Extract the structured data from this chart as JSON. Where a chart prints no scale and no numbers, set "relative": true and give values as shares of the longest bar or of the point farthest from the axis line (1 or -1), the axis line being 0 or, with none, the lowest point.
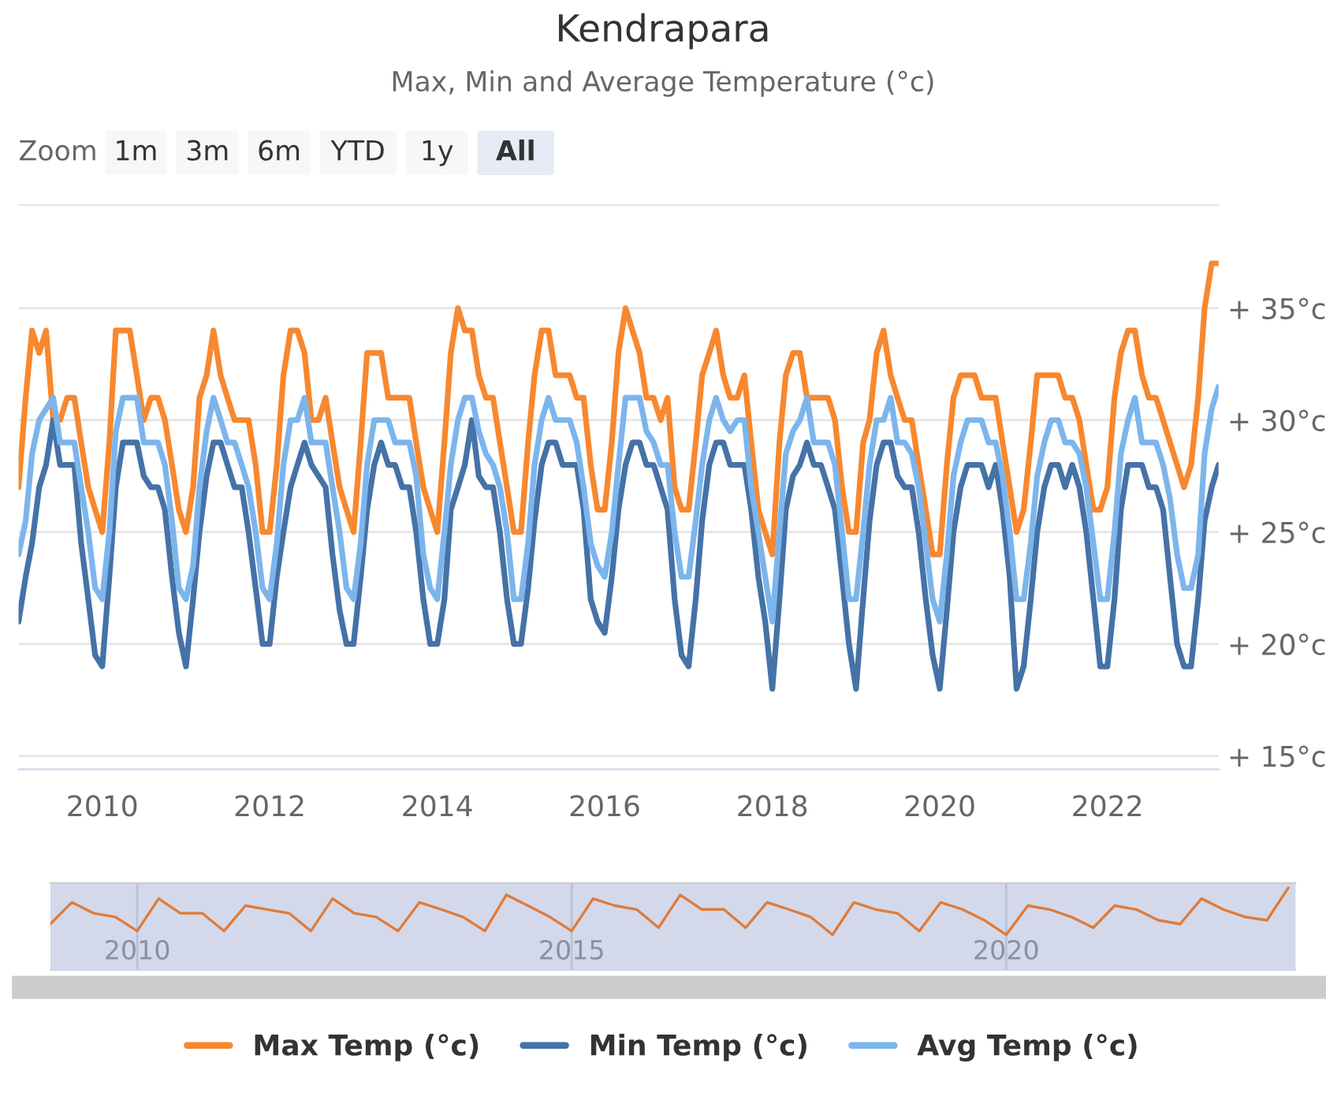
{
  "chart_data": [
    {
      "type": "line",
      "title": "Kendrapara",
      "subtitle": "Max, Min and Average Temperature (°c)",
      "annotations": [
        "Zoom",
        "1m",
        "3m",
        "6m",
        "YTD",
        "1y",
        "All"
      ],
      "x": [
        "2009-01",
        "2009-02",
        "2009-03",
        "2009-04",
        "2009-05",
        "2009-06",
        "2009-07",
        "2009-08",
        "2009-09",
        "2009-10",
        "2009-11",
        "2009-12",
        "2010-01",
        "2010-02",
        "2010-03",
        "2010-04",
        "2010-05",
        "2010-06",
        "2010-07",
        "2010-08",
        "2010-09",
        "2010-10",
        "2010-11",
        "2010-12",
        "2011-01",
        "2011-02",
        "2011-03",
        "2011-04",
        "2011-05",
        "2011-06",
        "2011-07",
        "2011-08",
        "2011-09",
        "2011-10",
        "2011-11",
        "2011-12",
        "2012-01",
        "2012-02",
        "2012-03",
        "2012-04",
        "2012-05",
        "2012-06",
        "2012-07",
        "2012-08",
        "2012-09",
        "2012-10",
        "2012-11",
        "2012-12",
        "2013-01",
        "2013-02",
        "2013-03",
        "2013-04",
        "2013-05",
        "2013-06",
        "2013-07",
        "2013-08",
        "2013-09",
        "2013-10",
        "2013-11",
        "2013-12",
        "2014-01",
        "2014-02",
        "2014-03",
        "2014-04",
        "2014-05",
        "2014-06",
        "2014-07",
        "2014-08",
        "2014-09",
        "2014-10",
        "2014-11",
        "2014-12",
        "2015-01",
        "2015-02",
        "2015-03",
        "2015-04",
        "2015-05",
        "2015-06",
        "2015-07",
        "2015-08",
        "2015-09",
        "2015-10",
        "2015-11",
        "2015-12",
        "2016-01",
        "2016-02",
        "2016-03",
        "2016-04",
        "2016-05",
        "2016-06",
        "2016-07",
        "2016-08",
        "2016-09",
        "2016-10",
        "2016-11",
        "2016-12",
        "2017-01",
        "2017-02",
        "2017-03",
        "2017-04",
        "2017-05",
        "2017-06",
        "2017-07",
        "2017-08",
        "2017-09",
        "2017-10",
        "2017-11",
        "2017-12",
        "2018-01",
        "2018-02",
        "2018-03",
        "2018-04",
        "2018-05",
        "2018-06",
        "2018-07",
        "2018-08",
        "2018-09",
        "2018-10",
        "2018-11",
        "2018-12",
        "2019-01",
        "2019-02",
        "2019-03",
        "2019-04",
        "2019-05",
        "2019-06",
        "2019-07",
        "2019-08",
        "2019-09",
        "2019-10",
        "2019-11",
        "2019-12",
        "2020-01",
        "2020-02",
        "2020-03",
        "2020-04",
        "2020-05",
        "2020-06",
        "2020-07",
        "2020-08",
        "2020-09",
        "2020-10",
        "2020-11",
        "2020-12",
        "2021-01",
        "2021-02",
        "2021-03",
        "2021-04",
        "2021-05",
        "2021-06",
        "2021-07",
        "2021-08",
        "2021-09",
        "2021-10",
        "2021-11",
        "2021-12",
        "2022-01",
        "2022-02",
        "2022-03",
        "2022-04",
        "2022-05",
        "2022-06",
        "2022-07",
        "2022-08",
        "2022-09",
        "2022-10",
        "2022-11",
        "2022-12",
        "2023-01",
        "2023-02",
        "2023-03",
        "2023-04",
        "2023-05"
      ],
      "series": [
        {
          "name": "Max Temp (°c)",
          "color": "#f7882f",
          "values": [
            27,
            31,
            34,
            33,
            34,
            30,
            30,
            31,
            31,
            29,
            27,
            26,
            25,
            29,
            34,
            34,
            34,
            32,
            30,
            31,
            31,
            30,
            28,
            26,
            25,
            27,
            31,
            32,
            34,
            32,
            31,
            30,
            30,
            30,
            28,
            25,
            25,
            28,
            32,
            34,
            34,
            33,
            30,
            30,
            31,
            29,
            27,
            26,
            25,
            29,
            33,
            33,
            33,
            31,
            31,
            31,
            31,
            29,
            27,
            26,
            25,
            29,
            33,
            35,
            34,
            34,
            32,
            31,
            31,
            29,
            27,
            25,
            25,
            29,
            32,
            34,
            34,
            32,
            32,
            32,
            31,
            31,
            28,
            26,
            26,
            29,
            33,
            35,
            34,
            33,
            31,
            31,
            30,
            31,
            27,
            26,
            26,
            29,
            32,
            33,
            34,
            32,
            31,
            31,
            32,
            29,
            26,
            25,
            24,
            29,
            32,
            33,
            33,
            31,
            31,
            31,
            31,
            30,
            27,
            25,
            25,
            29,
            30,
            33,
            34,
            32,
            31,
            30,
            30,
            28,
            26,
            24,
            24,
            28,
            31,
            32,
            32,
            32,
            31,
            31,
            31,
            29,
            27,
            25,
            26,
            29,
            32,
            32,
            32,
            32,
            31,
            31,
            30,
            28,
            26,
            26,
            27,
            31,
            33,
            34,
            34,
            32,
            31,
            31,
            30,
            29,
            28,
            27,
            28,
            31,
            35,
            37,
            37
          ]
        },
        {
          "name": "Min Temp (°c)",
          "color": "#4572a7",
          "values": [
            21,
            23,
            24.5,
            27,
            28,
            30,
            28,
            28,
            28,
            24.5,
            22,
            19.5,
            19,
            23,
            27,
            29,
            29,
            29,
            27.5,
            27,
            27,
            26,
            23,
            20.5,
            19,
            22,
            25,
            27.5,
            29,
            29,
            28,
            27,
            27,
            25,
            22.5,
            20,
            20,
            23,
            25,
            27,
            28,
            29,
            28,
            27.5,
            27,
            24,
            21.5,
            20,
            20,
            23,
            26,
            28,
            29,
            28,
            28,
            27,
            27,
            25,
            22,
            20,
            20,
            22,
            26,
            27,
            28,
            30,
            27.5,
            27,
            27,
            25,
            22,
            20,
            20,
            22.5,
            25.5,
            28,
            29,
            29,
            28,
            28,
            28,
            26,
            22,
            21,
            20.5,
            23,
            26,
            28,
            29,
            29,
            28,
            28,
            27,
            26,
            22,
            19.5,
            19,
            22,
            25.5,
            28,
            29,
            29,
            28,
            28,
            28,
            26,
            23,
            21,
            18,
            22,
            26,
            27.5,
            28,
            29,
            28,
            28,
            27,
            26,
            23,
            20,
            18,
            22,
            25.5,
            28,
            29,
            29,
            27.5,
            27,
            27,
            25,
            22,
            19.5,
            18,
            21.5,
            25,
            27,
            28,
            28,
            28,
            27,
            28,
            26,
            23,
            18,
            19,
            22,
            25,
            27,
            28,
            28,
            27,
            28,
            27,
            25,
            22,
            19,
            19,
            22,
            26,
            28,
            28,
            28,
            27,
            27,
            26,
            23,
            20,
            19,
            19,
            22,
            25.5,
            27,
            28
          ]
        },
        {
          "name": "Avg Temp (°c)",
          "color": "#7cb5ec",
          "values": [
            24,
            25.5,
            28.5,
            30,
            30.5,
            31,
            29,
            29,
            29,
            27,
            25,
            22.5,
            22,
            25,
            29.5,
            31,
            31,
            31,
            29,
            29,
            29,
            28,
            25.5,
            22.5,
            22,
            23.5,
            27,
            29.5,
            31,
            30,
            29,
            29,
            28,
            27,
            25,
            22.5,
            22,
            24.5,
            28,
            30,
            30,
            31,
            29,
            29,
            29,
            27,
            25,
            22.5,
            22,
            24.5,
            28,
            30,
            30,
            30,
            29,
            29,
            29,
            27.5,
            24,
            22.5,
            22,
            25,
            28,
            30,
            31,
            31,
            29.5,
            28.5,
            28,
            27,
            25,
            22,
            22,
            24.5,
            28,
            30,
            31,
            30,
            30,
            30,
            29,
            27,
            24.5,
            23.5,
            23,
            25,
            28,
            31,
            31,
            31,
            29.5,
            29,
            28,
            28,
            25,
            23,
            23,
            25.5,
            28,
            30,
            31,
            30,
            29.5,
            30,
            30,
            27,
            25,
            23,
            21,
            25,
            28.5,
            29.5,
            30,
            31,
            29,
            29,
            29,
            28,
            25,
            22,
            22,
            25,
            28,
            30,
            30,
            31,
            29,
            29,
            28.5,
            27,
            24.5,
            22,
            21,
            24,
            27.5,
            29,
            30,
            30,
            30,
            29,
            29,
            27.5,
            25,
            22,
            22,
            24.5,
            27.5,
            29,
            30,
            30,
            29,
            29,
            28.5,
            27,
            24.5,
            22,
            22,
            25,
            28.5,
            30,
            31,
            29,
            29,
            29,
            28,
            26.5,
            24,
            22.5,
            22.5,
            24,
            28.5,
            30.5,
            31.5
          ]
        }
      ],
      "xlim": [
        "2009-01",
        "2023-05"
      ],
      "xticks": [
        "2010",
        "2012",
        "2014",
        "2016",
        "2018",
        "2020",
        "2022"
      ],
      "ylim": [
        14.4,
        39.6
      ],
      "yticks": [
        {
          "value": 15,
          "label": "+ 15°c"
        },
        {
          "value": 20,
          "label": "+ 20°c"
        },
        {
          "value": 25,
          "label": "+ 25°c"
        },
        {
          "value": 30,
          "label": "+ 30°c"
        },
        {
          "value": 35,
          "label": "+ 35°c"
        }
      ],
      "grid": "y",
      "legend": "bottom",
      "marker": "none",
      "line_style": "solid"
    },
    {
      "type": "line",
      "relative": true,
      "x": [
        "2009-01",
        "2009-04",
        "2009-07",
        "2009-10",
        "2010-01",
        "2010-04",
        "2010-07",
        "2010-10",
        "2011-01",
        "2011-04",
        "2011-07",
        "2011-10",
        "2012-01",
        "2012-04",
        "2012-07",
        "2012-10",
        "2013-01",
        "2013-04",
        "2013-07",
        "2013-10",
        "2014-01",
        "2014-04",
        "2014-07",
        "2014-10",
        "2015-01",
        "2015-04",
        "2015-07",
        "2015-10",
        "2016-01",
        "2016-04",
        "2016-07",
        "2016-10",
        "2017-01",
        "2017-04",
        "2017-07",
        "2017-10",
        "2018-01",
        "2018-04",
        "2018-07",
        "2018-10",
        "2019-01",
        "2019-04",
        "2019-07",
        "2019-10",
        "2020-01",
        "2020-04",
        "2020-07",
        "2020-10",
        "2021-01",
        "2021-04",
        "2021-07",
        "2021-10",
        "2022-01",
        "2022-04",
        "2022-07",
        "2022-10",
        "2023-01",
        "2023-04"
      ],
      "series": [
        {
          "color": "#e07b39",
          "values": [
            0.23,
            0.69,
            0.46,
            0.38,
            0.08,
            0.77,
            0.46,
            0.46,
            0.08,
            0.62,
            0.54,
            0.46,
            0.08,
            0.77,
            0.46,
            0.38,
            0.08,
            0.69,
            0.54,
            0.38,
            0.08,
            0.85,
            0.62,
            0.38,
            0.08,
            0.77,
            0.62,
            0.54,
            0.15,
            0.85,
            0.54,
            0.54,
            0.15,
            0.69,
            0.54,
            0.38,
            0,
            0.69,
            0.54,
            0.46,
            0.08,
            0.69,
            0.54,
            0.31,
            0,
            0.62,
            0.54,
            0.38,
            0.15,
            0.62,
            0.54,
            0.31,
            0.23,
            0.77,
            0.54,
            0.38,
            0.31,
            1
          ]
        }
      ],
      "xlim": [
        "2009-01",
        "2023-05"
      ],
      "xticks": [
        "2010",
        "2015",
        "2020"
      ],
      "grid": "x",
      "tick_labels": "x"
    }
  ]
}
